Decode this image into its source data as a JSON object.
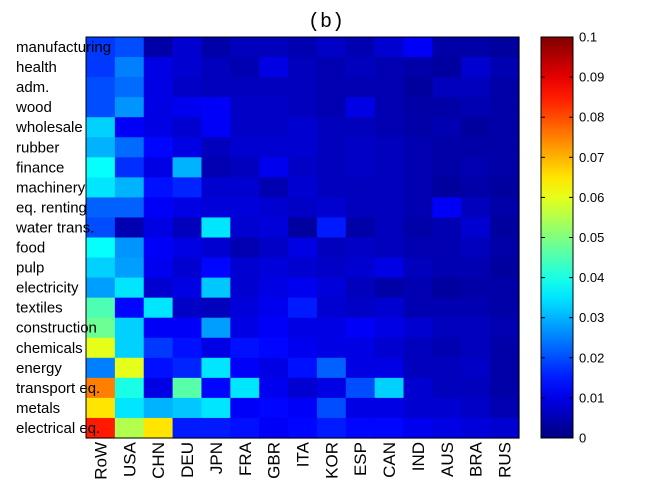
{
  "chart_data": {
    "type": "heatmap",
    "title": "(b)",
    "xlabel": "",
    "ylabel": "",
    "x_categories": [
      "RoW",
      "USA",
      "CHN",
      "DEU",
      "JPN",
      "FRA",
      "GBR",
      "ITA",
      "KOR",
      "ESP",
      "CAN",
      "IND",
      "AUS",
      "BRA",
      "RUS"
    ],
    "y_categories": [
      "manufacturing",
      "health",
      "adm.",
      "wood",
      "wholesale",
      "rubber",
      "finance",
      "machinery",
      "eq. renting",
      "water trans.",
      "food",
      "pulp",
      "electricity",
      "textiles",
      "construction",
      "chemicals",
      "energy",
      "transport eq.",
      "metals",
      "electrical eq."
    ],
    "colorbar": {
      "colormap": "jet",
      "range": [
        0,
        0.1
      ],
      "ticks": [
        0,
        0.01,
        0.02,
        0.03,
        0.04,
        0.05,
        0.06,
        0.07,
        0.08,
        0.09,
        0.1
      ],
      "tick_labels": [
        "0",
        "0.01",
        "0.02",
        "0.03",
        "0.04",
        "0.05",
        "0.06",
        "0.07",
        "0.08",
        "0.09",
        "0.1"
      ]
    },
    "values": [
      [
        0.018,
        0.02,
        0.004,
        0.008,
        0.004,
        0.006,
        0.006,
        0.005,
        0.007,
        0.005,
        0.008,
        0.012,
        0.004,
        0.004,
        0.003
      ],
      [
        0.018,
        0.025,
        0.01,
        0.008,
        0.006,
        0.005,
        0.01,
        0.006,
        0.005,
        0.006,
        0.005,
        0.004,
        0.003,
        0.008,
        0.005
      ],
      [
        0.02,
        0.023,
        0.01,
        0.007,
        0.006,
        0.006,
        0.006,
        0.006,
        0.005,
        0.005,
        0.005,
        0.003,
        0.006,
        0.006,
        0.004
      ],
      [
        0.02,
        0.027,
        0.01,
        0.011,
        0.012,
        0.007,
        0.007,
        0.006,
        0.005,
        0.01,
        0.005,
        0.004,
        0.004,
        0.005,
        0.004
      ],
      [
        0.033,
        0.012,
        0.01,
        0.008,
        0.012,
        0.007,
        0.007,
        0.008,
        0.006,
        0.006,
        0.005,
        0.004,
        0.005,
        0.003,
        0.004
      ],
      [
        0.03,
        0.023,
        0.013,
        0.01,
        0.006,
        0.008,
        0.008,
        0.008,
        0.006,
        0.007,
        0.006,
        0.005,
        0.004,
        0.004,
        0.004
      ],
      [
        0.038,
        0.017,
        0.01,
        0.03,
        0.005,
        0.006,
        0.011,
        0.007,
        0.006,
        0.007,
        0.006,
        0.005,
        0.004,
        0.005,
        0.004
      ],
      [
        0.035,
        0.03,
        0.014,
        0.016,
        0.008,
        0.008,
        0.005,
        0.008,
        0.006,
        0.006,
        0.006,
        0.005,
        0.003,
        0.004,
        0.003
      ],
      [
        0.022,
        0.022,
        0.012,
        0.01,
        0.009,
        0.009,
        0.008,
        0.007,
        0.008,
        0.006,
        0.006,
        0.005,
        0.012,
        0.006,
        0.004
      ],
      [
        0.02,
        0.005,
        0.01,
        0.006,
        0.035,
        0.008,
        0.009,
        0.003,
        0.015,
        0.004,
        0.006,
        0.004,
        0.005,
        0.008,
        0.003
      ],
      [
        0.038,
        0.027,
        0.012,
        0.01,
        0.008,
        0.005,
        0.007,
        0.01,
        0.006,
        0.007,
        0.006,
        0.005,
        0.005,
        0.006,
        0.004
      ],
      [
        0.033,
        0.028,
        0.011,
        0.008,
        0.013,
        0.008,
        0.009,
        0.008,
        0.007,
        0.008,
        0.01,
        0.006,
        0.005,
        0.005,
        0.003
      ],
      [
        0.028,
        0.035,
        0.008,
        0.01,
        0.032,
        0.008,
        0.01,
        0.011,
        0.009,
        0.006,
        0.004,
        0.005,
        0.003,
        0.004,
        0.004
      ],
      [
        0.045,
        0.013,
        0.035,
        0.007,
        0.006,
        0.009,
        0.011,
        0.015,
        0.008,
        0.007,
        0.008,
        0.005,
        0.005,
        0.005,
        0.004
      ],
      [
        0.048,
        0.033,
        0.012,
        0.012,
        0.028,
        0.01,
        0.012,
        0.01,
        0.01,
        0.012,
        0.01,
        0.008,
        0.006,
        0.006,
        0.005
      ],
      [
        0.06,
        0.033,
        0.018,
        0.014,
        0.01,
        0.014,
        0.013,
        0.011,
        0.01,
        0.01,
        0.008,
        0.006,
        0.005,
        0.006,
        0.004
      ],
      [
        0.025,
        0.06,
        0.014,
        0.016,
        0.035,
        0.012,
        0.01,
        0.014,
        0.022,
        0.01,
        0.01,
        0.006,
        0.006,
        0.007,
        0.004
      ],
      [
        0.075,
        0.04,
        0.01,
        0.046,
        0.013,
        0.035,
        0.011,
        0.008,
        0.01,
        0.02,
        0.033,
        0.008,
        0.006,
        0.006,
        0.004
      ],
      [
        0.065,
        0.035,
        0.03,
        0.032,
        0.035,
        0.012,
        0.013,
        0.012,
        0.02,
        0.01,
        0.01,
        0.008,
        0.008,
        0.007,
        0.005
      ],
      [
        0.085,
        0.055,
        0.065,
        0.015,
        0.015,
        0.014,
        0.012,
        0.013,
        0.015,
        0.013,
        0.013,
        0.011,
        0.01,
        0.009,
        0.008
      ]
    ]
  }
}
